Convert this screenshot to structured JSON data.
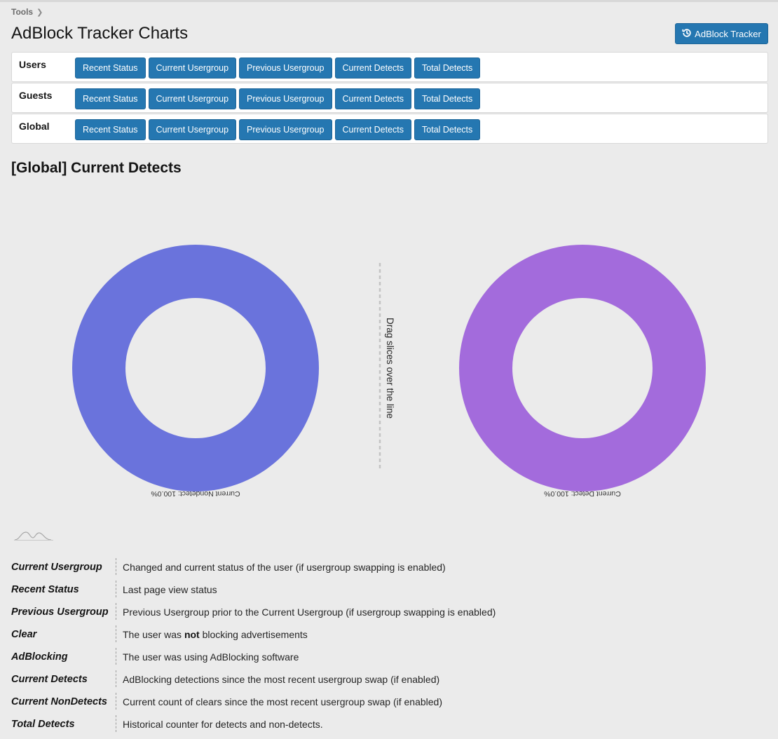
{
  "breadcrumb": {
    "item": "Tools"
  },
  "page_title": "AdBlock Tracker Charts",
  "top_button": {
    "label": "AdBlock Tracker",
    "icon": "history-icon"
  },
  "rows": [
    {
      "label": "Users",
      "buttons": [
        "Recent Status",
        "Current Usergroup",
        "Previous Usergroup",
        "Current Detects",
        "Total Detects"
      ]
    },
    {
      "label": "Guests",
      "buttons": [
        "Recent Status",
        "Current Usergroup",
        "Previous Usergroup",
        "Current Detects",
        "Total Detects"
      ]
    },
    {
      "label": "Global",
      "buttons": [
        "Recent Status",
        "Current Usergroup",
        "Previous Usergroup",
        "Current Detects",
        "Total Detects"
      ]
    }
  ],
  "section_title": "[Global] Current Detects",
  "chart_data": {
    "type": "pie",
    "divider_label": "Drag slices over the line",
    "pies": [
      {
        "slices": [
          {
            "name": "Current Nondetect",
            "value": 100.0,
            "label": "Current Nondetect: 100.0%",
            "color": "#6a73dc"
          }
        ]
      },
      {
        "slices": [
          {
            "name": "Current Detect",
            "value": 100.0,
            "label": "Current Detect: 100.0%",
            "color": "#a36bdc"
          }
        ]
      }
    ]
  },
  "legend": [
    {
      "term": "Current Usergroup",
      "desc_parts": [
        "Changed and current status of the user (if usergroup swapping is enabled)"
      ]
    },
    {
      "term": "Recent Status",
      "desc_parts": [
        "Last page view status"
      ]
    },
    {
      "term": "Previous Usergroup",
      "desc_parts": [
        "Previous Usergroup prior to the Current Usergroup (if usergroup swapping is enabled)"
      ]
    },
    {
      "term": "Clear",
      "desc_parts": [
        "The user was ",
        "not",
        " blocking advertisements"
      ]
    },
    {
      "term": "AdBlocking",
      "desc_parts": [
        "The user was using AdBlocking software"
      ]
    },
    {
      "term": "Current Detects",
      "desc_parts": [
        "AdBlocking detections since the most recent usergroup swap (if enabled)"
      ]
    },
    {
      "term": "Current NonDetects",
      "desc_parts": [
        "Current count of clears since the most recent usergroup swap (if enabled)"
      ]
    },
    {
      "term": "Total Detects",
      "desc_parts": [
        "Historical counter for detects and non-detects."
      ]
    }
  ]
}
